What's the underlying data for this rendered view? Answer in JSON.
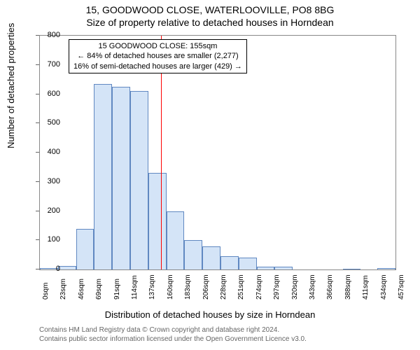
{
  "title_line1": "15, GOODWOOD CLOSE, WATERLOOVILLE, PO8 8BG",
  "title_line2": "Size of property relative to detached houses in Horndean",
  "ylabel": "Number of detached properties",
  "xlabel": "Distribution of detached houses by size in Horndean",
  "chart": {
    "type": "histogram",
    "ylim": [
      0,
      800
    ],
    "ytick_step": 100,
    "yticks": [
      0,
      100,
      200,
      300,
      400,
      500,
      600,
      700,
      800
    ],
    "xticks": [
      "0sqm",
      "23sqm",
      "46sqm",
      "69sqm",
      "91sqm",
      "114sqm",
      "137sqm",
      "160sqm",
      "183sqm",
      "206sqm",
      "228sqm",
      "251sqm",
      "274sqm",
      "297sqm",
      "320sqm",
      "343sqm",
      "366sqm",
      "388sqm",
      "411sqm",
      "434sqm",
      "457sqm"
    ],
    "values": [
      6,
      12,
      140,
      635,
      625,
      610,
      330,
      200,
      100,
      80,
      45,
      40,
      10,
      10,
      0,
      0,
      0,
      2,
      0,
      4
    ],
    "bar_fill": "#d4e4f7",
    "bar_stroke": "rgba(0,60,150,.55)",
    "plot_border": "#888",
    "background": "#ffffff"
  },
  "marker": {
    "value_sqm": 155,
    "color": "#ff0000",
    "width": 1,
    "fraction_of_bins": 0.34
  },
  "annotation": {
    "line1": "15 GOODWOOD CLOSE: 155sqm",
    "line2": "← 84% of detached houses are smaller (2,277)",
    "line3": "16% of semi-detached houses are larger (429) →",
    "border": "#000000",
    "fontsize": 11
  },
  "footer": {
    "line1": "Contains HM Land Registry data © Crown copyright and database right 2024.",
    "line2": "Contains public sector information licensed under the Open Government Licence v3.0.",
    "color": "#666666",
    "fontsize": 10
  },
  "fonts": {
    "title": 14,
    "axis_label": 13,
    "tick": 11,
    "xtick": 10
  }
}
